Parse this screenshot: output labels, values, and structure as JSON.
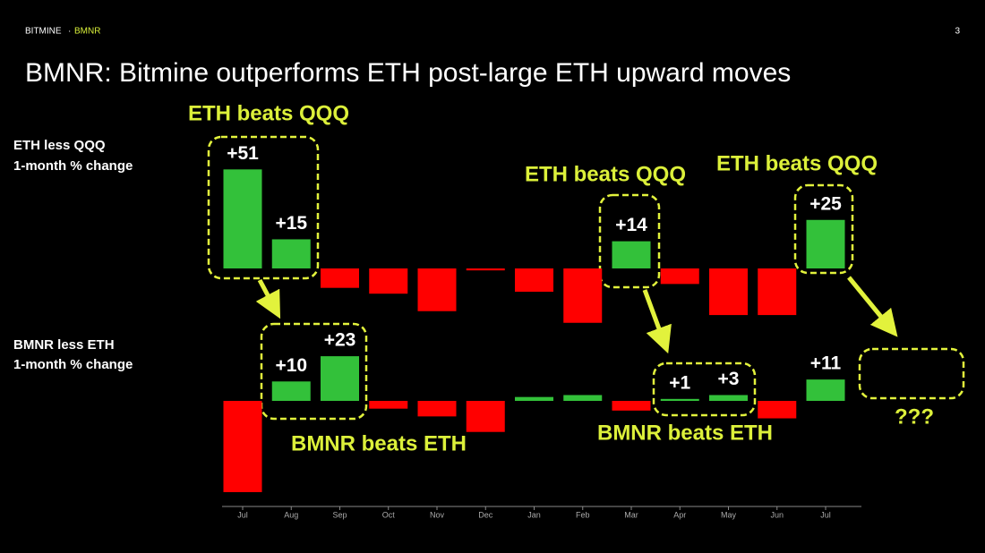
{
  "header": {
    "brand": "BITMINE",
    "separator": "·",
    "ticker": "BMNR",
    "page_number": "3"
  },
  "chart_data": {
    "type": "bar",
    "title": "BMNR: Bitmine outperforms ETH post-large ETH upward moves",
    "categories": [
      "Jul",
      "Aug",
      "Sep",
      "Oct",
      "Nov",
      "Dec",
      "Jan",
      "Feb",
      "Mar",
      "Apr",
      "May",
      "Jun",
      "Jul"
    ],
    "series": [
      {
        "name": "ETH less QQQ",
        "unit_label": "1-month % change",
        "color": "#33c13a",
        "negative_color": "#ff0000",
        "values": [
          51,
          15,
          -10,
          -13,
          -22,
          -1,
          -12,
          -28,
          14,
          -8,
          -24,
          -24,
          25
        ],
        "value_labels": [
          "+51",
          "+15",
          null,
          null,
          null,
          null,
          null,
          null,
          "+14",
          null,
          null,
          null,
          "+25"
        ]
      },
      {
        "name": "BMNR less ETH",
        "unit_label": "1-month % change",
        "color": "#33c13a",
        "negative_color": "#ff0000",
        "values": [
          -47,
          10,
          23,
          -4,
          -8,
          -16,
          2,
          3,
          -5,
          1,
          3,
          -9,
          11
        ],
        "value_labels": [
          null,
          "+10",
          "+23",
          null,
          null,
          null,
          null,
          null,
          null,
          "+1",
          "+3",
          null,
          "+11"
        ]
      }
    ],
    "annotations": [
      "ETH beats QQQ",
      "ETH beats QQQ",
      "ETH beats QQQ",
      "BMNR beats ETH",
      "BMNR beats ETH",
      "???"
    ]
  }
}
